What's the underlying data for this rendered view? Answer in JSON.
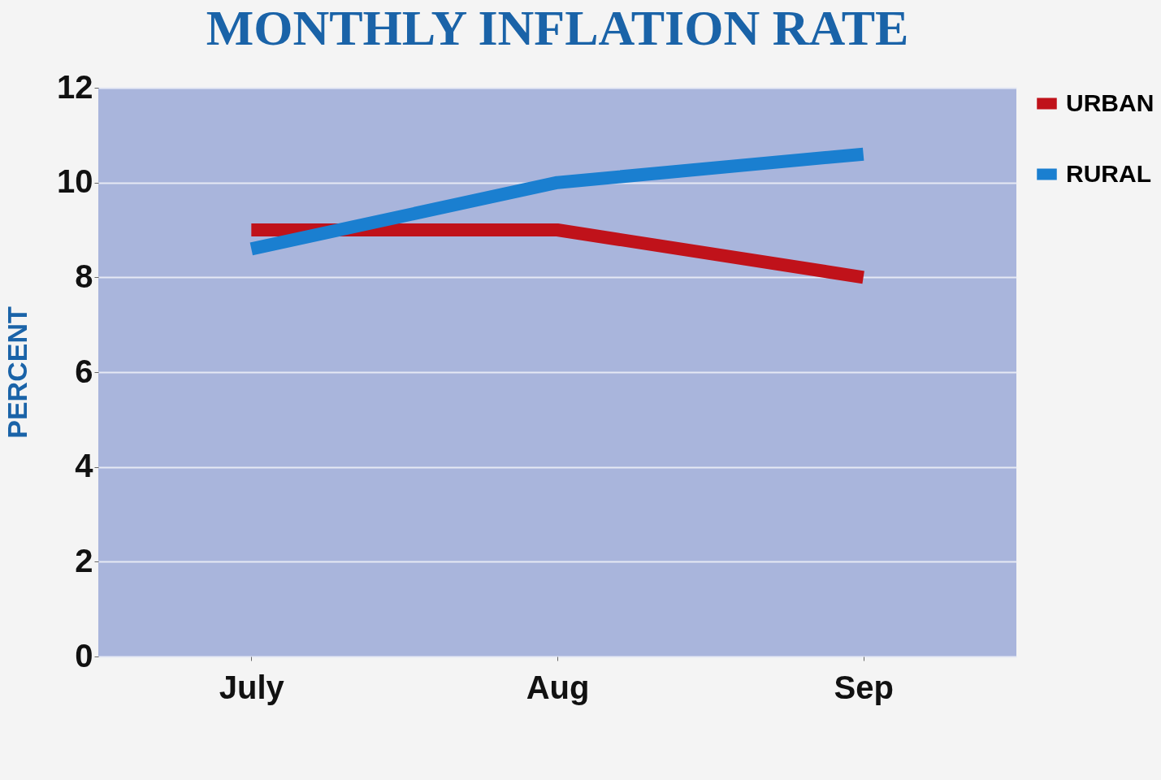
{
  "chart_data": {
    "type": "line",
    "title": "MONTHLY INFLATION RATE",
    "ylabel": "PERCENT",
    "categories": [
      "July",
      "Aug",
      "Sep"
    ],
    "series": [
      {
        "name": "URBAN",
        "color": "#c0121a",
        "values": [
          9.0,
          9.0,
          8.0
        ]
      },
      {
        "name": "RURAL",
        "color": "#1a7fd0",
        "values": [
          8.6,
          10.0,
          10.6
        ]
      }
    ],
    "ylim": [
      0,
      12
    ],
    "yticks": [
      0,
      2,
      4,
      6,
      8,
      10,
      12
    ],
    "grid": "y",
    "legend": "right",
    "line_style": "solid"
  }
}
